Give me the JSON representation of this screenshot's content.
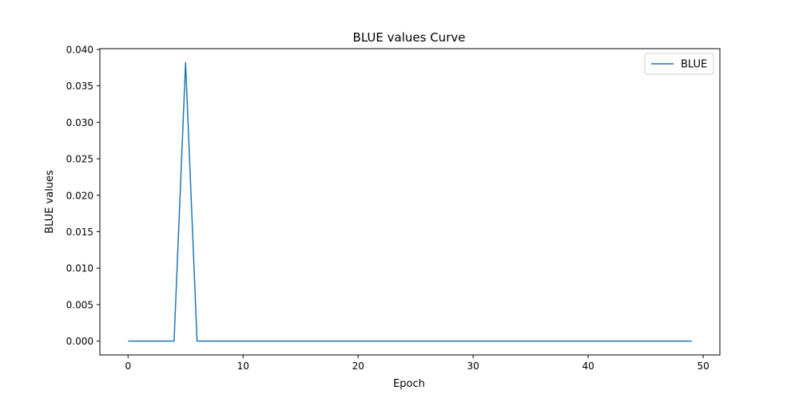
{
  "chart_data": {
    "type": "line",
    "title": "BLUE values Curve",
    "xlabel": "Epoch",
    "ylabel": "BLUE values",
    "xlim": [
      -2.45,
      51.45
    ],
    "ylim": [
      -0.0019,
      0.0401
    ],
    "xticks": [
      0,
      10,
      20,
      30,
      40,
      50
    ],
    "yticks": [
      0.0,
      0.005,
      0.01,
      0.015,
      0.02,
      0.025,
      0.03,
      0.035,
      0.04
    ],
    "xtick_labels": [
      "0",
      "10",
      "20",
      "30",
      "40",
      "50"
    ],
    "ytick_labels": [
      "0.000",
      "0.005",
      "0.010",
      "0.015",
      "0.020",
      "0.025",
      "0.030",
      "0.035",
      "0.040"
    ],
    "grid": false,
    "legend_position": "upper right",
    "colors": {
      "line": "#1f77b4"
    },
    "series": [
      {
        "name": "BLUE",
        "x": [
          0,
          1,
          2,
          3,
          4,
          5,
          6,
          7,
          8,
          9,
          10,
          11,
          12,
          13,
          14,
          15,
          16,
          17,
          18,
          19,
          20,
          21,
          22,
          23,
          24,
          25,
          26,
          27,
          28,
          29,
          30,
          31,
          32,
          33,
          34,
          35,
          36,
          37,
          38,
          39,
          40,
          41,
          42,
          43,
          44,
          45,
          46,
          47,
          48,
          49
        ],
        "values": [
          0,
          0,
          0,
          0,
          0,
          0.0382,
          0,
          0,
          0,
          0,
          0,
          0,
          0,
          0,
          0,
          0,
          0,
          0,
          0,
          0,
          0,
          0,
          0,
          0,
          0,
          0,
          0,
          0,
          0,
          0,
          0,
          0,
          0,
          0,
          0,
          0,
          0,
          0,
          0,
          0,
          0,
          0,
          0,
          0,
          0,
          0,
          0,
          0,
          0,
          0
        ]
      }
    ]
  }
}
